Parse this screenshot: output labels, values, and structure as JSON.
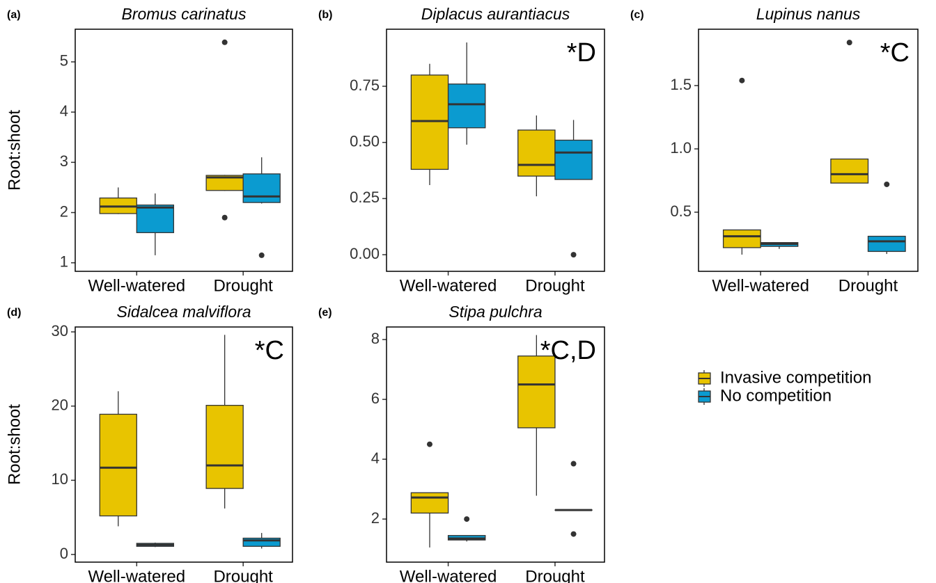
{
  "legend": [
    {
      "name": "Invasive competition",
      "color": "#e8c400"
    },
    {
      "name": "No competition",
      "color": "#0b9bd0"
    }
  ],
  "chart_data": [
    {
      "type": "box",
      "panel_label": "(a)",
      "title": "Bromus carinatus",
      "y_label": "Root:shoot",
      "categories": [
        "Well-watered",
        "Drought"
      ],
      "ylim": [
        0.83,
        5.65
      ],
      "yticks": [
        1,
        2,
        3,
        4,
        5
      ],
      "series": [
        {
          "color": "#e8c400",
          "values": [
            {
              "low": 1.97,
              "q1": 1.98,
              "median": 2.12,
              "q3": 2.29,
              "high": 2.5,
              "outliers": []
            },
            {
              "low": 2.43,
              "q1": 2.44,
              "median": 2.7,
              "q3": 2.74,
              "high": 2.75,
              "outliers": [
                1.9,
                5.39
              ]
            }
          ]
        },
        {
          "color": "#0b9bd0",
          "values": [
            {
              "low": 1.15,
              "q1": 1.6,
              "median": 2.1,
              "q3": 2.15,
              "high": 2.38,
              "outliers": []
            },
            {
              "low": 2.18,
              "q1": 2.2,
              "median": 2.32,
              "q3": 2.77,
              "high": 3.1,
              "outliers": [
                1.15
              ]
            }
          ]
        }
      ]
    },
    {
      "type": "box",
      "panel_label": "(b)",
      "title": "Diplacus aurantiacus",
      "annotation": "*D",
      "categories": [
        "Well-watered",
        "Drought"
      ],
      "ylim": [
        -0.074,
        1.004
      ],
      "yticks": [
        {
          "value": 0,
          "label": "0.00"
        },
        {
          "value": 0.25,
          "label": "0.25"
        },
        {
          "value": 0.5,
          "label": "0.50"
        },
        {
          "value": 0.75,
          "label": "0.75"
        }
      ],
      "series": [
        {
          "color": "#e8c400",
          "values": [
            {
              "low": 0.31,
              "q1": 0.38,
              "median": 0.595,
              "q3": 0.8,
              "high": 0.85,
              "outliers": []
            },
            {
              "low": 0.26,
              "q1": 0.35,
              "median": 0.4,
              "q3": 0.555,
              "high": 0.62,
              "outliers": []
            }
          ]
        },
        {
          "color": "#0b9bd0",
          "values": [
            {
              "low": 0.49,
              "q1": 0.565,
              "median": 0.67,
              "q3": 0.76,
              "high": 0.945,
              "outliers": []
            },
            {
              "low": 0.335,
              "q1": 0.335,
              "median": 0.455,
              "q3": 0.51,
              "high": 0.6,
              "outliers": [
                0
              ]
            }
          ]
        }
      ]
    },
    {
      "type": "box",
      "panel_label": "(c)",
      "title": "Lupinus  nanus",
      "annotation": "*C",
      "categories": [
        "Well-watered",
        "Drought"
      ],
      "ylim": [
        0.033,
        1.945
      ],
      "yticks": [
        0.5,
        {
          "value": 1,
          "label": "1.0"
        },
        1.5
      ],
      "series": [
        {
          "color": "#e8c400",
          "values": [
            {
              "low": 0.165,
              "q1": 0.22,
              "median": 0.31,
              "q3": 0.36,
              "high": 0.36,
              "outliers": [
                1.54
              ]
            },
            {
              "low": 0.73,
              "q1": 0.73,
              "median": 0.8,
              "q3": 0.92,
              "high": 0.92,
              "outliers": [
                1.84
              ]
            }
          ]
        },
        {
          "color": "#0b9bd0",
          "values": [
            {
              "low": 0.21,
              "q1": 0.23,
              "median": 0.25,
              "q3": 0.26,
              "high": 0.26,
              "outliers": []
            },
            {
              "low": 0.17,
              "q1": 0.19,
              "median": 0.27,
              "q3": 0.31,
              "high": 0.31,
              "outliers": [
                0.72
              ]
            }
          ]
        }
      ]
    },
    {
      "type": "box",
      "panel_label": "(d)",
      "title": "Sidalcea malviflora",
      "y_label": "Root:shoot",
      "annotation": "*C",
      "categories": [
        "Well-watered",
        "Drought"
      ],
      "ylim": [
        -1.03,
        30.66
      ],
      "yticks": [
        0,
        10,
        20,
        30
      ],
      "series": [
        {
          "color": "#e8c400",
          "values": [
            {
              "low": 3.8,
              "q1": 5.2,
              "median": 11.7,
              "q3": 18.9,
              "high": 22.0,
              "outliers": []
            },
            {
              "low": 6.2,
              "q1": 8.9,
              "median": 12.0,
              "q3": 20.1,
              "high": 29.6,
              "outliers": []
            }
          ]
        },
        {
          "color": "#0b9bd0",
          "values": [
            {
              "low": 1.0,
              "q1": 1.1,
              "median": 1.3,
              "q3": 1.5,
              "high": 1.6,
              "outliers": []
            },
            {
              "low": 0.8,
              "q1": 1.1,
              "median": 1.9,
              "q3": 2.2,
              "high": 2.9,
              "outliers": []
            }
          ]
        }
      ]
    },
    {
      "type": "box",
      "panel_label": "(e)",
      "title": "Stipa pulchra",
      "annotation": "*C,D",
      "categories": [
        "Well-watered",
        "Drought"
      ],
      "ylim": [
        0.56,
        8.42
      ],
      "yticks": [
        2,
        4,
        6,
        8
      ],
      "series": [
        {
          "color": "#e8c400",
          "values": [
            {
              "low": 1.05,
              "q1": 2.2,
              "median": 2.72,
              "q3": 2.88,
              "high": 2.88,
              "outliers": [
                4.5
              ]
            },
            {
              "low": 2.78,
              "q1": 5.05,
              "median": 6.5,
              "q3": 7.45,
              "high": 8.15,
              "outliers": []
            }
          ]
        },
        {
          "color": "#0b9bd0",
          "values": [
            {
              "low": 1.25,
              "q1": 1.3,
              "median": 1.35,
              "q3": 1.45,
              "high": 1.45,
              "outliers": [
                2.0
              ]
            },
            {
              "low": 2.3,
              "q1": 2.3,
              "median": 2.3,
              "q3": 2.3,
              "high": 2.3,
              "outliers": [
                3.85,
                1.5
              ]
            }
          ]
        }
      ]
    }
  ]
}
